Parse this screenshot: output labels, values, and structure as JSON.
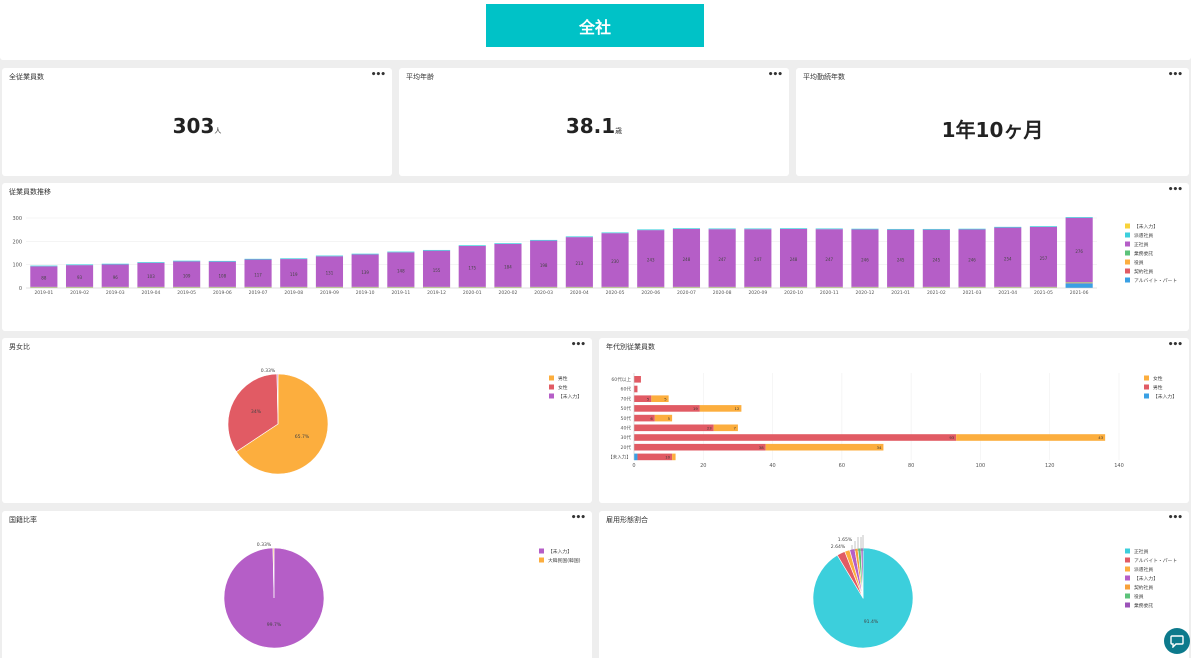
{
  "header": {
    "button_label": "全社"
  },
  "kpis": [
    {
      "title": "全従業員数",
      "value": "303",
      "unit": "人"
    },
    {
      "title": "平均年齢",
      "value": "38.1",
      "unit": "歳"
    },
    {
      "title": "平均勤続年数",
      "value": "1年10ヶ月",
      "unit": ""
    }
  ],
  "charts": {
    "trend": {
      "title": "従業員数推移"
    },
    "gender": {
      "title": "男女比"
    },
    "age": {
      "title": "年代別従業員数"
    },
    "nationality": {
      "title": "国籍比率"
    },
    "employment": {
      "title": "雇用形態割合"
    }
  },
  "colors": {
    "purple": "#b55ec7",
    "orange": "#fcae3e",
    "red": "#e15b64",
    "cyan": "#3ccfdc",
    "yellow": "#f8d33a",
    "green": "#5cc27a",
    "blue": "#3aa0e4",
    "accent": "#00c2c7"
  },
  "chart_data": [
    {
      "type": "bar",
      "stacked": true,
      "title": "従業員数推移",
      "categories": [
        "2019-01",
        "2019-02",
        "2019-03",
        "2019-04",
        "2019-05",
        "2019-06",
        "2019-07",
        "2019-08",
        "2019-09",
        "2019-10",
        "2019-11",
        "2019-12",
        "2020-01",
        "2020-02",
        "2020-03",
        "2020-04",
        "2020-05",
        "2020-06",
        "2020-07",
        "2020-08",
        "2020-09",
        "2020-10",
        "2020-11",
        "2020-12",
        "2021-01",
        "2021-02",
        "2021-03",
        "2021-04",
        "2021-05",
        "2021-06"
      ],
      "ylim": [
        0,
        300
      ],
      "yticks": [
        0,
        100,
        200,
        300
      ],
      "legend_position": "right",
      "series": [
        {
          "name": "【未入力】",
          "color": "#f8d33a",
          "values": [
            0,
            0,
            0,
            0,
            0,
            0,
            0,
            0,
            0,
            0,
            0,
            0,
            0,
            0,
            0,
            0,
            0,
            0,
            0,
            0,
            0,
            0,
            0,
            0,
            0,
            0,
            0,
            0,
            0,
            0
          ]
        },
        {
          "name": "派遣社員",
          "color": "#3ccfdc",
          "values": [
            3,
            3,
            3,
            3,
            3,
            3,
            3,
            3,
            3,
            3,
            3,
            3,
            3,
            3,
            3,
            3,
            3,
            3,
            3,
            3,
            3,
            3,
            3,
            3,
            3,
            3,
            3,
            3,
            3,
            3
          ]
        },
        {
          "name": "正社員",
          "color": "#b55ec7",
          "values": [
            88,
            93,
            96,
            103,
            109,
            108,
            117,
            119,
            131,
            139,
            148,
            155,
            175,
            184,
            198,
            213,
            230,
            243,
            248,
            247,
            247,
            248,
            247,
            246,
            245,
            245,
            246,
            254,
            257,
            276
          ]
        },
        {
          "name": "業務委託",
          "color": "#5cc27a",
          "values": [
            2,
            2,
            2,
            2,
            2,
            2,
            2,
            2,
            2,
            2,
            2,
            2,
            2,
            2,
            2,
            2,
            2,
            2,
            2,
            2,
            2,
            2,
            2,
            2,
            2,
            2,
            2,
            2,
            2,
            2
          ]
        },
        {
          "name": "役員",
          "color": "#fcae3e",
          "values": [
            2,
            2,
            2,
            2,
            2,
            2,
            2,
            2,
            2,
            2,
            2,
            2,
            2,
            2,
            2,
            2,
            2,
            2,
            2,
            2,
            2,
            2,
            2,
            2,
            2,
            2,
            2,
            2,
            2,
            2
          ]
        },
        {
          "name": "契約社員",
          "color": "#e15b64",
          "values": [
            1,
            1,
            1,
            1,
            1,
            1,
            1,
            1,
            1,
            1,
            1,
            1,
            1,
            1,
            1,
            1,
            1,
            1,
            1,
            1,
            1,
            1,
            1,
            1,
            1,
            1,
            1,
            1,
            1,
            1
          ]
        },
        {
          "name": "アルバイト・パート",
          "color": "#3aa0e4",
          "values": [
            0,
            0,
            0,
            0,
            0,
            0,
            0,
            0,
            0,
            0,
            0,
            0,
            0,
            0,
            0,
            0,
            0,
            0,
            0,
            0,
            0,
            0,
            0,
            0,
            0,
            0,
            0,
            0,
            0,
            20
          ]
        }
      ]
    },
    {
      "type": "pie",
      "title": "男女比",
      "labels": [
        "男性",
        "女性",
        "【未入力】"
      ],
      "values": [
        65.7,
        34,
        0.33
      ],
      "colors": [
        "#fcae3e",
        "#e15b64",
        "#b55ec7"
      ],
      "slice_labels": [
        "65.7%",
        "34%",
        "0.33%"
      ],
      "legend_position": "right"
    },
    {
      "type": "bar",
      "orientation": "horizontal",
      "stacked": true,
      "title": "年代別従業員数",
      "categories": [
        "60代以上",
        "60代",
        "70代",
        "50代",
        "50代",
        "40代",
        "30代",
        "20代",
        "【未入力】"
      ],
      "xlim": [
        0,
        140
      ],
      "xticks": [
        0,
        20,
        40,
        60,
        80,
        100,
        120,
        140
      ],
      "legend_position": "right",
      "series": [
        {
          "name": "女性",
          "color": "#fcae3e",
          "values": [
            0,
            0,
            5,
            12,
            5,
            7,
            43,
            34,
            1
          ]
        },
        {
          "name": "男性",
          "color": "#e15b64",
          "values": [
            2,
            1,
            5,
            19,
            6,
            23,
            93,
            38,
            10
          ]
        },
        {
          "name": "【未入力】",
          "color": "#3aa0e4",
          "values": [
            0,
            0,
            0,
            0,
            0,
            0,
            0,
            0,
            1
          ]
        }
      ]
    },
    {
      "type": "pie",
      "title": "国籍比率",
      "labels": [
        "【未入力】",
        "大韓民国(韓国)"
      ],
      "values": [
        99.7,
        0.33
      ],
      "colors": [
        "#b55ec7",
        "#fcae3e"
      ],
      "slice_labels": [
        "99.7%",
        "0.33%"
      ],
      "legend_position": "right"
    },
    {
      "type": "pie",
      "title": "雇用形態割合",
      "labels": [
        "正社員",
        "アルバイト・パート",
        "派遣社員",
        "【未入力】",
        "契約社員",
        "役員",
        "業務委託"
      ],
      "values": [
        91.4,
        2.64,
        1.65,
        1.65,
        1.0,
        1.0,
        0.66
      ],
      "colors": [
        "#3ccfdc",
        "#e15b64",
        "#fcae3e",
        "#b55ec7",
        "#f8a13a",
        "#5cc27a",
        "#9b52b8"
      ],
      "slice_labels": [
        "91.4%",
        "2.64%",
        "1.65%",
        "",
        "",
        "",
        ""
      ],
      "legend_position": "right"
    }
  ]
}
